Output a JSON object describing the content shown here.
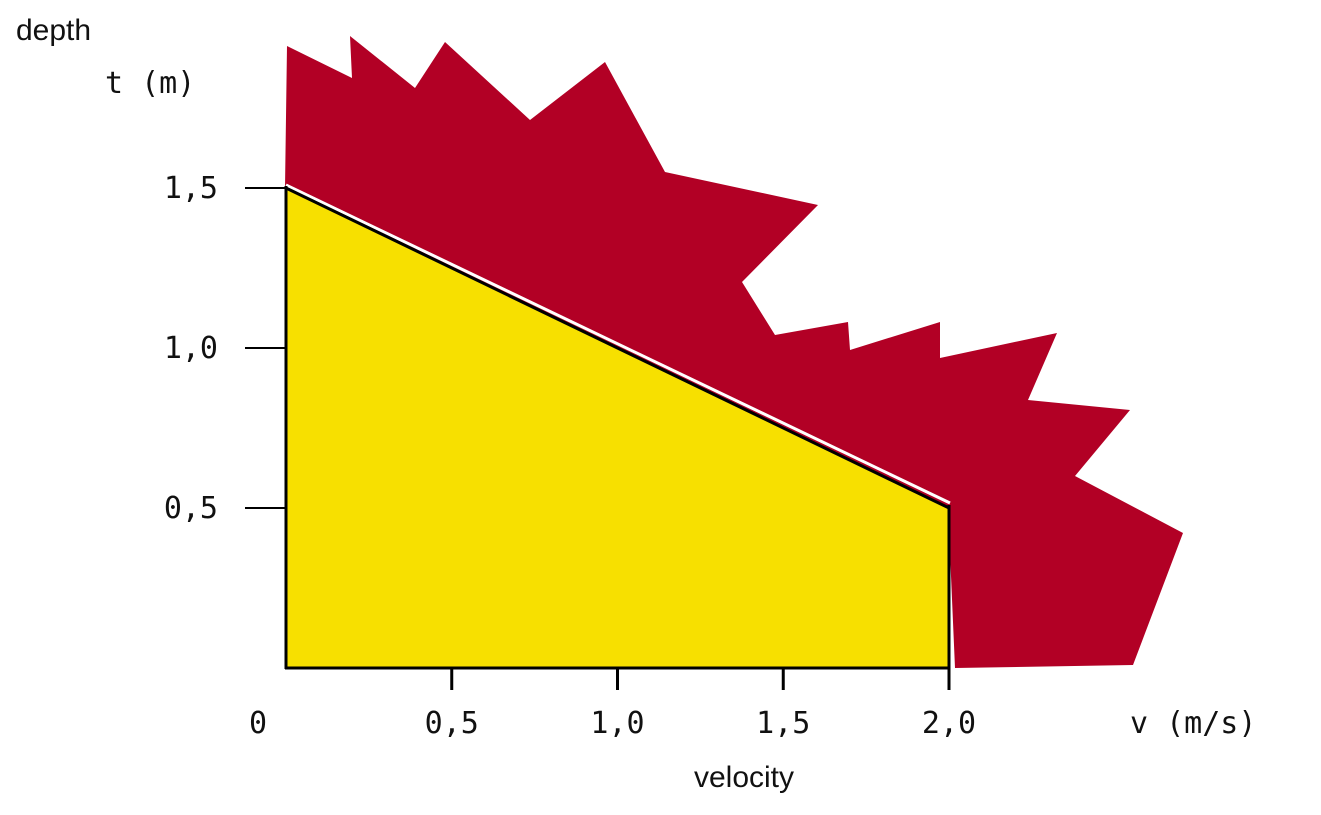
{
  "chart_data": {
    "type": "area",
    "x_axis": {
      "unit_label": "v (m/s)",
      "name": "velocity",
      "ticks": [
        {
          "value": 0,
          "label": "0"
        },
        {
          "value": 0.5,
          "label": "0,5"
        },
        {
          "value": 1.0,
          "label": "1,0"
        },
        {
          "value": 1.5,
          "label": "1,5"
        },
        {
          "value": 2.0,
          "label": "2,0"
        }
      ],
      "range": [
        0,
        2.0
      ]
    },
    "y_axis": {
      "name": "depth",
      "unit_label": "t (m)",
      "ticks": [
        {
          "value": 0.5,
          "label": "0,5"
        },
        {
          "value": 1.0,
          "label": "1,0"
        },
        {
          "value": 1.5,
          "label": "1,5"
        }
      ],
      "range": [
        0,
        1.5
      ]
    },
    "yellow_region": {
      "color": "#F7E000",
      "boundary_line": [
        {
          "v": 0,
          "t": 1.5
        },
        {
          "v": 2.0,
          "t": 0.5
        }
      ]
    },
    "red_region": {
      "color": "#B20025"
    },
    "grid": false,
    "legend": "none"
  }
}
